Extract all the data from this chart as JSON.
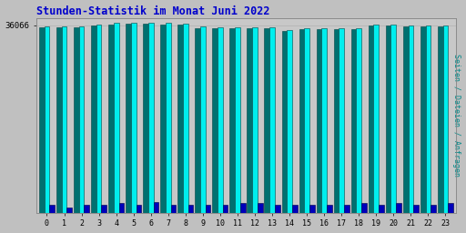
{
  "title": "Stunden-Statistik im Monat Juni 2022",
  "ylabel_right": "Seiten / Dateien / Anfragen",
  "hours": [
    0,
    1,
    2,
    3,
    4,
    5,
    6,
    7,
    8,
    9,
    10,
    11,
    12,
    13,
    14,
    15,
    16,
    17,
    18,
    19,
    20,
    21,
    22,
    23
  ],
  "color_cyan": "#00EEEE",
  "color_teal": "#007070",
  "color_blue": "#0000BB",
  "bg_color": "#C0C0C0",
  "plot_bg": "#C8C8C8",
  "title_color": "#0000CC",
  "ylabel_color": "#008888",
  "bar_heights_cyan": [
    35900,
    35800,
    35900,
    36300,
    36500,
    36550,
    36550,
    36500,
    36450,
    35800,
    35750,
    35750,
    35700,
    35750,
    35200,
    35500,
    35600,
    35600,
    35600,
    36200,
    36200,
    36000,
    36000,
    36000
  ],
  "bar_heights_teal": [
    35700,
    35650,
    35700,
    36100,
    36300,
    36350,
    36350,
    36300,
    36250,
    35600,
    35550,
    35550,
    35500,
    35550,
    35000,
    35300,
    35400,
    35400,
    35400,
    36000,
    36000,
    35800,
    35800,
    35800
  ],
  "bar_heights_blue": [
    1600,
    1000,
    1600,
    1600,
    1900,
    1600,
    2100,
    1600,
    1600,
    1600,
    1600,
    1900,
    1900,
    1600,
    1600,
    1600,
    1600,
    1600,
    1900,
    1600,
    1900,
    1600,
    1600,
    1900
  ],
  "ymin": 0,
  "ymax": 37500,
  "ytick_val": 36066,
  "group_width": 0.9
}
